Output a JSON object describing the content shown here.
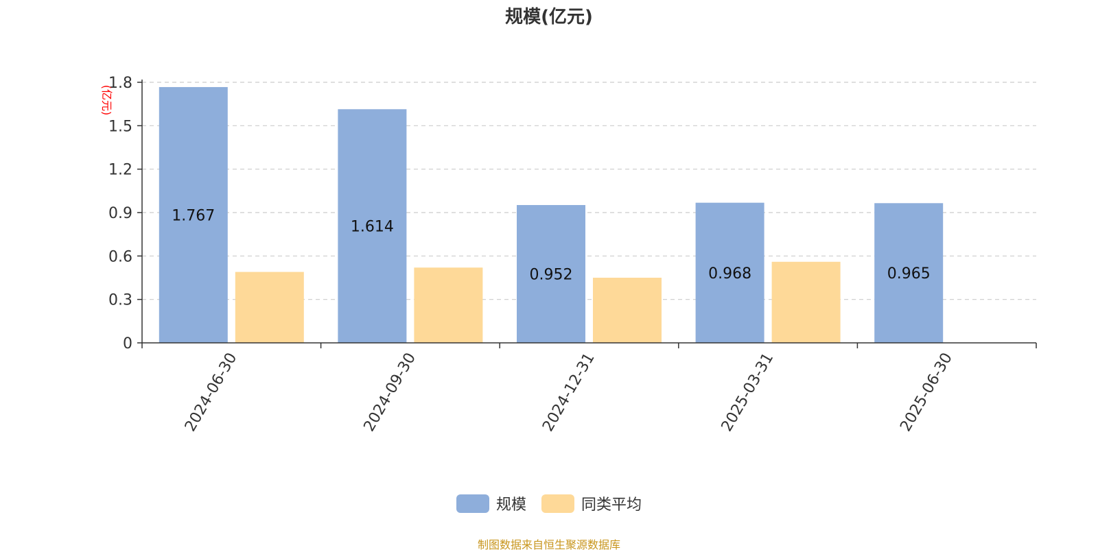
{
  "chart_data": {
    "type": "bar",
    "title": "规模(亿元)",
    "ylabel": "(亿元)",
    "xlabel": "",
    "categories": [
      "2024-06-30",
      "2024-09-30",
      "2024-12-31",
      "2025-03-31",
      "2025-06-30"
    ],
    "series": [
      {
        "name": "规模",
        "values": [
          1.767,
          1.614,
          0.952,
          0.968,
          0.965
        ],
        "labels": [
          "1.767",
          "1.614",
          "0.952",
          "0.968",
          "0.965"
        ],
        "color": "#8eaedb"
      },
      {
        "name": "同类平均",
        "values": [
          0.49,
          0.52,
          0.45,
          0.56,
          null
        ],
        "color": "#fed998"
      }
    ],
    "ylim": [
      0,
      1.8
    ],
    "yticks": [
      0,
      0.3,
      0.6,
      0.9,
      1.2,
      1.5,
      1.8
    ],
    "ytick_labels": [
      "0",
      "0.3",
      "0.6",
      "0.9",
      "1.2",
      "1.5",
      "1.8"
    ],
    "grid": true,
    "legend": "bottom-center",
    "colors": {
      "axis": "#333333",
      "grid": "#cccccc",
      "ylabel": "#ff0000",
      "source": "#c8961e"
    }
  },
  "source_note": "制图数据来自恒生聚源数据库"
}
